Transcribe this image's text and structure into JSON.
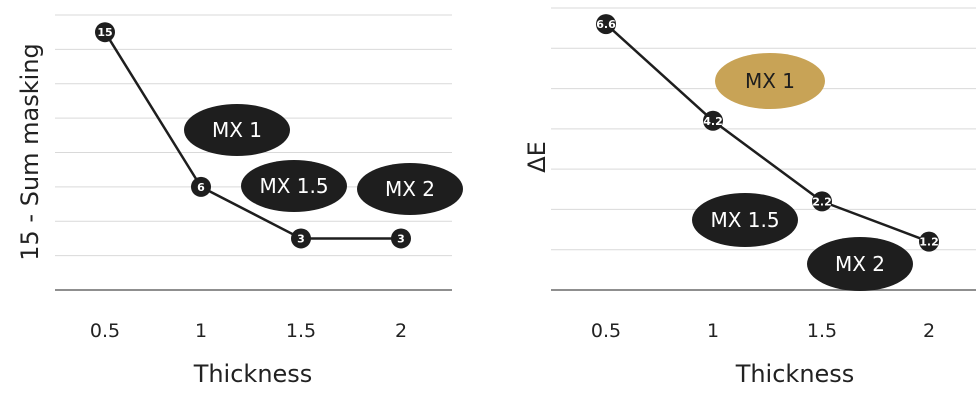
{
  "chart_data": [
    {
      "type": "line",
      "x": [
        0.5,
        1,
        1.5,
        2
      ],
      "series": [
        {
          "values": [
            15,
            6,
            3,
            3
          ],
          "data_labels": [
            "15",
            "6",
            "3",
            "3"
          ]
        }
      ],
      "xlabel": "Thickness",
      "ylabel": "15 - Sum masking",
      "x_tick_labels": [
        "0.5",
        "1",
        "1.5",
        "2"
      ],
      "ylim": [
        0,
        16
      ],
      "grid": true,
      "annotations": [
        {
          "text": "MX 1",
          "color": "#1e1e1e"
        },
        {
          "text": "MX 1.5",
          "color": "#1e1e1e"
        },
        {
          "text": "MX 2",
          "color": "#1e1e1e"
        }
      ]
    },
    {
      "type": "line",
      "x": [
        0.5,
        1,
        1.5,
        2
      ],
      "series": [
        {
          "values": [
            6.6,
            4.2,
            2.2,
            1.2
          ],
          "data_labels": [
            "6.6",
            "4.2",
            "2.2",
            "1.2"
          ]
        }
      ],
      "xlabel": "Thickness",
      "ylabel": "ΔE",
      "x_tick_labels": [
        "0.5",
        "1",
        "1.5",
        "2"
      ],
      "ylim": [
        0,
        7
      ],
      "grid": true,
      "annotations": [
        {
          "text": "MX 1",
          "color": "#c8a356"
        },
        {
          "text": "MX 1.5",
          "color": "#1e1e1e"
        },
        {
          "text": "MX 2",
          "color": "#1e1e1e"
        }
      ]
    }
  ],
  "colors": {
    "line": "#1e1e1e",
    "grid": "#d9d9d9",
    "axis": "#6a6a6a",
    "marker": "#1e1e1e",
    "accent": "#c8a356"
  }
}
